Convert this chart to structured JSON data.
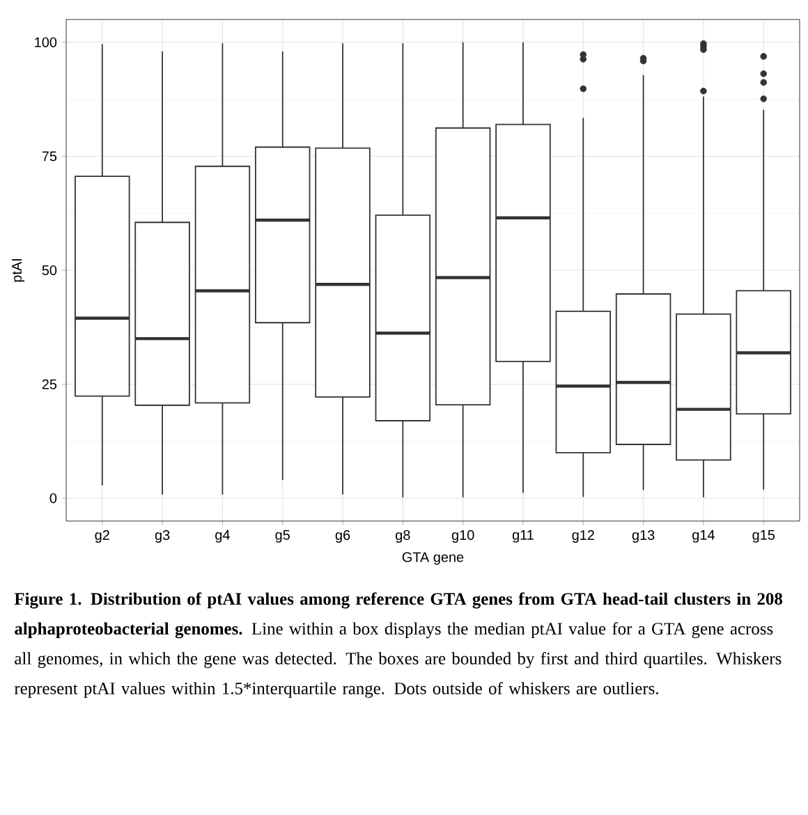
{
  "chart_data": {
    "type": "box",
    "xlabel": "GTA gene",
    "ylabel": "ptAI",
    "categories": [
      "g2",
      "g3",
      "g4",
      "g5",
      "g6",
      "g8",
      "g10",
      "g11",
      "g12",
      "g13",
      "g14",
      "g15"
    ],
    "boxes": [
      {
        "low": 2.8,
        "q1": 22.4,
        "median": 39.5,
        "q3": 70.6,
        "high": 99.6
      },
      {
        "low": 0.8,
        "q1": 20.4,
        "median": 35,
        "q3": 60.5,
        "high": 98
      },
      {
        "low": 0.8,
        "q1": 20.9,
        "median": 45.5,
        "q3": 72.8,
        "high": 99.8
      },
      {
        "low": 4,
        "q1": 38.5,
        "median": 61,
        "q3": 77,
        "high": 98
      },
      {
        "low": 0.8,
        "q1": 22.2,
        "median": 46.9,
        "q3": 76.8,
        "high": 99.8
      },
      {
        "low": 0.2,
        "q1": 17,
        "median": 36.2,
        "q3": 62.1,
        "high": 99.8
      },
      {
        "low": 0.2,
        "q1": 20.5,
        "median": 48.4,
        "q3": 81.2,
        "high": 100
      },
      {
        "low": 1.2,
        "q1": 30,
        "median": 61.5,
        "q3": 82,
        "high": 100
      },
      {
        "low": 0.3,
        "q1": 10,
        "median": 24.6,
        "q3": 41,
        "high": 83.4,
        "outliers": [
          97.3,
          96.3,
          89.8
        ]
      },
      {
        "low": 1.8,
        "q1": 11.8,
        "median": 25.4,
        "q3": 44.8,
        "high": 92.8,
        "outliers": [
          96.5,
          95.9
        ]
      },
      {
        "low": 0.2,
        "q1": 8.4,
        "median": 19.5,
        "q3": 40.4,
        "high": 88.1,
        "outliers": [
          99.7,
          99.1,
          98.4,
          89.3
        ]
      },
      {
        "low": 1.9,
        "q1": 18.5,
        "median": 31.9,
        "q3": 45.5,
        "high": 85.2,
        "outliers": [
          96.9,
          93.1,
          91.2,
          87.6
        ]
      }
    ],
    "color": "#333333",
    "marker": "circle",
    "ylim": [
      -5,
      105
    ],
    "yticks": [
      0,
      25,
      50,
      75,
      100
    ],
    "grid": true,
    "annotations": [
      "**Figure 1. Distribution of ptAI values among reference GTA genes from GTA head-tail clusters in 208 alphaproteobacterial genomes.** Line within a box displays the median ptAI value for a GTA gene across all genomes, in which the gene was detected. The boxes are bounded by first and third quartiles. Whiskers represent ptAI values within 1.5*interquartile range. Dots outside of whiskers are outliers."
    ]
  }
}
